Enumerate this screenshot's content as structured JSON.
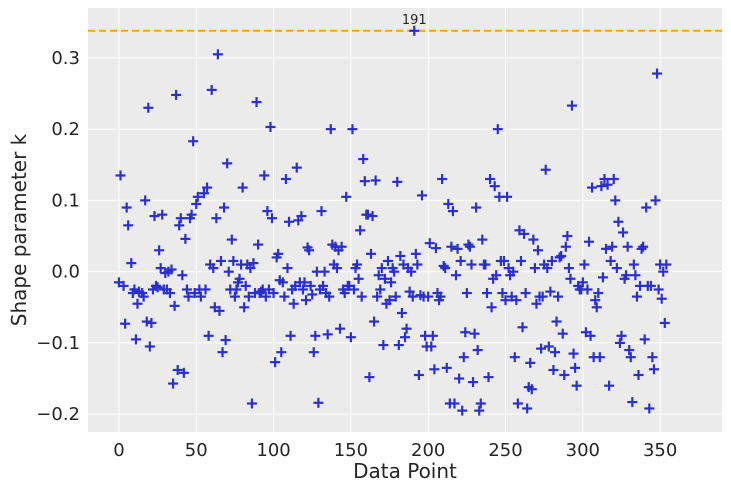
{
  "chart_data": {
    "type": "scatter",
    "xlabel": "Data Point",
    "ylabel": "Shape parameter k",
    "xlim": [
      -20,
      390
    ],
    "ylim": [
      -0.225,
      0.37
    ],
    "xticks": [
      0,
      50,
      100,
      150,
      200,
      250,
      300,
      350
    ],
    "xtick_labels": [
      "0",
      "50",
      "100",
      "150",
      "200",
      "250",
      "300",
      "350"
    ],
    "yticks": [
      -0.2,
      -0.1,
      0.0,
      0.1,
      0.2,
      0.3
    ],
    "ytick_labels": [
      "−0.2",
      "−0.1",
      "0.0",
      "0.1",
      "0.2",
      "0.3"
    ],
    "grid": true,
    "marker": "+",
    "colors": {
      "marker": "#2a2fd0",
      "threshold": "#ffa500",
      "background": "#ebebeb",
      "grid": "#ffffff"
    },
    "threshold": {
      "y": 0.338,
      "style": "dashed"
    },
    "annotations": [
      {
        "text": "191",
        "x": 191,
        "y": 0.338
      }
    ],
    "points": [
      [
        0,
        -0.015
      ],
      [
        1,
        0.135
      ],
      [
        3,
        -0.02
      ],
      [
        4,
        -0.073
      ],
      [
        5,
        0.09
      ],
      [
        6,
        0.065
      ],
      [
        8,
        0.012
      ],
      [
        9,
        -0.03
      ],
      [
        10,
        -0.025
      ],
      [
        11,
        -0.095
      ],
      [
        12,
        -0.045
      ],
      [
        13,
        -0.028
      ],
      [
        15,
        -0.03
      ],
      [
        16,
        -0.035
      ],
      [
        17,
        0.1
      ],
      [
        18,
        -0.07
      ],
      [
        19,
        0.23
      ],
      [
        20,
        -0.105
      ],
      [
        21,
        -0.072
      ],
      [
        22,
        -0.025
      ],
      [
        23,
        0.078
      ],
      [
        24,
        -0.02
      ],
      [
        25,
        -0.022
      ],
      [
        26,
        0.03
      ],
      [
        27,
        0.005
      ],
      [
        28,
        0.08
      ],
      [
        29,
        -0.025
      ],
      [
        30,
        -0.002
      ],
      [
        31,
        -0.025
      ],
      [
        32,
        0.0
      ],
      [
        33,
        -0.03
      ],
      [
        34,
        0.003
      ],
      [
        35,
        -0.157
      ],
      [
        36,
        -0.048
      ],
      [
        37,
        0.248
      ],
      [
        38,
        -0.138
      ],
      [
        39,
        0.065
      ],
      [
        40,
        0.075
      ],
      [
        41,
        -0.005
      ],
      [
        42,
        -0.142
      ],
      [
        43,
        0.046
      ],
      [
        44,
        -0.025
      ],
      [
        45,
        -0.035
      ],
      [
        46,
        0.075
      ],
      [
        47,
        0.08
      ],
      [
        48,
        0.183
      ],
      [
        49,
        -0.03
      ],
      [
        50,
        0.095
      ],
      [
        51,
        0.105
      ],
      [
        52,
        -0.025
      ],
      [
        53,
        -0.035
      ],
      [
        55,
        0.11
      ],
      [
        56,
        -0.025
      ],
      [
        57,
        0.118
      ],
      [
        58,
        -0.09
      ],
      [
        59,
        0.01
      ],
      [
        60,
        0.255
      ],
      [
        61,
        0.005
      ],
      [
        62,
        -0.05
      ],
      [
        63,
        0.075
      ],
      [
        64,
        0.305
      ],
      [
        65,
        -0.055
      ],
      [
        66,
        0.015
      ],
      [
        67,
        -0.113
      ],
      [
        68,
        0.09
      ],
      [
        69,
        -0.096
      ],
      [
        70,
        0.152
      ],
      [
        71,
        0.0
      ],
      [
        72,
        -0.025
      ],
      [
        73,
        0.045
      ],
      [
        74,
        0.015
      ],
      [
        75,
        -0.035
      ],
      [
        76,
        -0.025
      ],
      [
        77,
        -0.015
      ],
      [
        78,
        -0.01
      ],
      [
        79,
        0.01
      ],
      [
        80,
        0.118
      ],
      [
        81,
        -0.05
      ],
      [
        82,
        -0.02
      ],
      [
        83,
        0.01
      ],
      [
        84,
        -0.035
      ],
      [
        85,
        0.005
      ],
      [
        86,
        -0.185
      ],
      [
        87,
        0.012
      ],
      [
        88,
        -0.03
      ],
      [
        89,
        0.238
      ],
      [
        90,
        0.038
      ],
      [
        91,
        -0.03
      ],
      [
        92,
        -0.028
      ],
      [
        93,
        -0.025
      ],
      [
        94,
        0.135
      ],
      [
        95,
        -0.035
      ],
      [
        96,
        0.085
      ],
      [
        97,
        -0.025
      ],
      [
        98,
        0.203
      ],
      [
        99,
        0.075
      ],
      [
        100,
        -0.03
      ],
      [
        101,
        -0.127
      ],
      [
        102,
        0.02
      ],
      [
        103,
        0.025
      ],
      [
        104,
        -0.012
      ],
      [
        105,
        -0.113
      ],
      [
        106,
        -0.015
      ],
      [
        107,
        -0.035
      ],
      [
        108,
        0.13
      ],
      [
        109,
        0.005
      ],
      [
        110,
        0.07
      ],
      [
        111,
        -0.09
      ],
      [
        112,
        -0.025
      ],
      [
        113,
        -0.045
      ],
      [
        114,
        -0.02
      ],
      [
        115,
        0.146
      ],
      [
        116,
        0.072
      ],
      [
        117,
        -0.015
      ],
      [
        118,
        0.078
      ],
      [
        119,
        -0.025
      ],
      [
        120,
        -0.015
      ],
      [
        121,
        -0.04
      ],
      [
        122,
        0.034
      ],
      [
        123,
        0.03
      ],
      [
        124,
        -0.02
      ],
      [
        125,
        -0.032
      ],
      [
        126,
        -0.113
      ],
      [
        127,
        -0.09
      ],
      [
        128,
        0.0
      ],
      [
        129,
        -0.184
      ],
      [
        130,
        -0.025
      ],
      [
        131,
        0.085
      ],
      [
        132,
        -0.02
      ],
      [
        133,
        0.0
      ],
      [
        134,
        -0.03
      ],
      [
        135,
        -0.088
      ],
      [
        136,
        -0.035
      ],
      [
        137,
        0.2
      ],
      [
        138,
        0.038
      ],
      [
        139,
        0.01
      ],
      [
        140,
        0.035
      ],
      [
        141,
        0.005
      ],
      [
        142,
        0.03
      ],
      [
        143,
        -0.08
      ],
      [
        144,
        0.035
      ],
      [
        145,
        -0.025
      ],
      [
        146,
        -0.03
      ],
      [
        147,
        0.105
      ],
      [
        148,
        -0.02
      ],
      [
        149,
        -0.02
      ],
      [
        150,
        -0.092
      ],
      [
        151,
        0.2
      ],
      [
        152,
        -0.025
      ],
      [
        153,
        0.005
      ],
      [
        154,
        0.01
      ],
      [
        155,
        -0.01
      ],
      [
        156,
        0.058
      ],
      [
        157,
        -0.035
      ],
      [
        158,
        0.158
      ],
      [
        159,
        0.127
      ],
      [
        160,
        0.08
      ],
      [
        161,
        0.08
      ],
      [
        162,
        -0.148
      ],
      [
        163,
        0.025
      ],
      [
        164,
        0.078
      ],
      [
        165,
        -0.07
      ],
      [
        166,
        0.128
      ],
      [
        167,
        -0.035
      ],
      [
        168,
        -0.005
      ],
      [
        169,
        -0.025
      ],
      [
        170,
        0.005
      ],
      [
        171,
        -0.103
      ],
      [
        172,
        -0.01
      ],
      [
        173,
        -0.045
      ],
      [
        174,
        0.015
      ],
      [
        175,
        -0.04
      ],
      [
        176,
        -0.015
      ],
      [
        177,
        0.005
      ],
      [
        178,
        0.0
      ],
      [
        179,
        -0.035
      ],
      [
        180,
        0.126
      ],
      [
        181,
        -0.103
      ],
      [
        182,
        0.022
      ],
      [
        183,
        -0.058
      ],
      [
        184,
        0.01
      ],
      [
        185,
        -0.092
      ],
      [
        186,
        -0.08
      ],
      [
        187,
        0.005
      ],
      [
        188,
        -0.028
      ],
      [
        189,
        0.0
      ],
      [
        190,
        -0.035
      ],
      [
        191,
        0.338
      ],
      [
        192,
        0.025
      ],
      [
        193,
        0.01
      ],
      [
        194,
        -0.145
      ],
      [
        195,
        -0.033
      ],
      [
        196,
        0.107
      ],
      [
        197,
        -0.035
      ],
      [
        198,
        -0.09
      ],
      [
        199,
        -0.105
      ],
      [
        200,
        -0.035
      ],
      [
        201,
        0.04
      ],
      [
        202,
        -0.105
      ],
      [
        203,
        -0.09
      ],
      [
        204,
        -0.137
      ],
      [
        205,
        0.033
      ],
      [
        206,
        -0.03
      ],
      [
        207,
        -0.04
      ],
      [
        208,
        -0.035
      ],
      [
        209,
        0.13
      ],
      [
        210,
        0.008
      ],
      [
        211,
        0.005
      ],
      [
        212,
        -0.135
      ],
      [
        213,
        0.095
      ],
      [
        214,
        -0.185
      ],
      [
        215,
        0.035
      ],
      [
        216,
        0.085
      ],
      [
        217,
        -0.185
      ],
      [
        218,
        -0.005
      ],
      [
        219,
        0.032
      ],
      [
        220,
        -0.15
      ],
      [
        221,
        0.015
      ],
      [
        222,
        -0.195
      ],
      [
        223,
        -0.12
      ],
      [
        224,
        -0.085
      ],
      [
        225,
        -0.03
      ],
      [
        226,
        0.038
      ],
      [
        227,
        0.035
      ],
      [
        228,
        0.01
      ],
      [
        229,
        -0.155
      ],
      [
        230,
        -0.087
      ],
      [
        231,
        0.09
      ],
      [
        232,
        -0.11
      ],
      [
        233,
        -0.195
      ],
      [
        234,
        -0.185
      ],
      [
        235,
        0.045
      ],
      [
        236,
        0.01
      ],
      [
        237,
        0.01
      ],
      [
        238,
        -0.03
      ],
      [
        239,
        -0.148
      ],
      [
        240,
        0.13
      ],
      [
        241,
        -0.05
      ],
      [
        242,
        -0.01
      ],
      [
        243,
        0.12
      ],
      [
        244,
        -0.005
      ],
      [
        245,
        0.2
      ],
      [
        246,
        0.105
      ],
      [
        247,
        0.015
      ],
      [
        248,
        -0.03
      ],
      [
        249,
        0.015
      ],
      [
        250,
        -0.04
      ],
      [
        251,
        0.105
      ],
      [
        252,
        0.005
      ],
      [
        253,
        -0.005
      ],
      [
        254,
        -0.035
      ],
      [
        255,
        0.0
      ],
      [
        256,
        -0.12
      ],
      [
        257,
        -0.04
      ],
      [
        258,
        -0.185
      ],
      [
        259,
        0.058
      ],
      [
        260,
        0.015
      ],
      [
        261,
        -0.078
      ],
      [
        262,
        0.053
      ],
      [
        263,
        -0.03
      ],
      [
        264,
        -0.192
      ],
      [
        265,
        -0.162
      ],
      [
        266,
        -0.128
      ],
      [
        267,
        -0.165
      ],
      [
        268,
        0.045
      ],
      [
        269,
        0.005
      ],
      [
        270,
        -0.045
      ],
      [
        271,
        0.03
      ],
      [
        272,
        -0.035
      ],
      [
        273,
        -0.108
      ],
      [
        274,
        -0.035
      ],
      [
        275,
        0.01
      ],
      [
        276,
        0.143
      ],
      [
        277,
        0.005
      ],
      [
        278,
        -0.105
      ],
      [
        279,
        -0.028
      ],
      [
        280,
        0.015
      ],
      [
        281,
        -0.138
      ],
      [
        282,
        -0.113
      ],
      [
        283,
        -0.07
      ],
      [
        284,
        -0.035
      ],
      [
        285,
        0.02
      ],
      [
        286,
        0.022
      ],
      [
        287,
        -0.087
      ],
      [
        288,
        -0.145
      ],
      [
        289,
        0.035
      ],
      [
        290,
        0.05
      ],
      [
        291,
        0.005
      ],
      [
        292,
        -0.01
      ],
      [
        293,
        0.233
      ],
      [
        294,
        -0.115
      ],
      [
        295,
        -0.135
      ],
      [
        296,
        -0.16
      ],
      [
        297,
        -0.02
      ],
      [
        298,
        -0.025
      ],
      [
        299,
        -0.025
      ],
      [
        300,
        -0.015
      ],
      [
        301,
        0.01
      ],
      [
        302,
        -0.085
      ],
      [
        303,
        -0.025
      ],
      [
        304,
        0.042
      ],
      [
        305,
        -0.09
      ],
      [
        306,
        0.118
      ],
      [
        307,
        -0.12
      ],
      [
        308,
        -0.04
      ],
      [
        309,
        -0.05
      ],
      [
        310,
        -0.03
      ],
      [
        311,
        -0.12
      ],
      [
        312,
        0.12
      ],
      [
        313,
        -0.008
      ],
      [
        314,
        0.13
      ],
      [
        315,
        0.032
      ],
      [
        316,
        0.122
      ],
      [
        317,
        -0.16
      ],
      [
        318,
        0.015
      ],
      [
        319,
        0.035
      ],
      [
        320,
        0.13
      ],
      [
        321,
        0.1
      ],
      [
        322,
        0.005
      ],
      [
        323,
        0.07
      ],
      [
        324,
        -0.1
      ],
      [
        325,
        -0.09
      ],
      [
        326,
        0.055
      ],
      [
        327,
        -0.01
      ],
      [
        328,
        -0.005
      ],
      [
        329,
        0.035
      ],
      [
        330,
        -0.11
      ],
      [
        331,
        -0.12
      ],
      [
        332,
        -0.183
      ],
      [
        333,
        0.01
      ],
      [
        334,
        -0.005
      ],
      [
        335,
        -0.035
      ],
      [
        336,
        -0.145
      ],
      [
        337,
        -0.02
      ],
      [
        338,
        0.032
      ],
      [
        339,
        0.035
      ],
      [
        340,
        -0.095
      ],
      [
        341,
        0.09
      ],
      [
        342,
        -0.02
      ],
      [
        343,
        -0.192
      ],
      [
        344,
        -0.02
      ],
      [
        345,
        -0.12
      ],
      [
        346,
        -0.137
      ],
      [
        347,
        0.1
      ],
      [
        348,
        0.278
      ],
      [
        349,
        -0.025
      ],
      [
        350,
        0.01
      ],
      [
        351,
        -0.038
      ],
      [
        352,
        0.0
      ],
      [
        353,
        -0.072
      ],
      [
        354,
        0.01
      ]
    ]
  }
}
